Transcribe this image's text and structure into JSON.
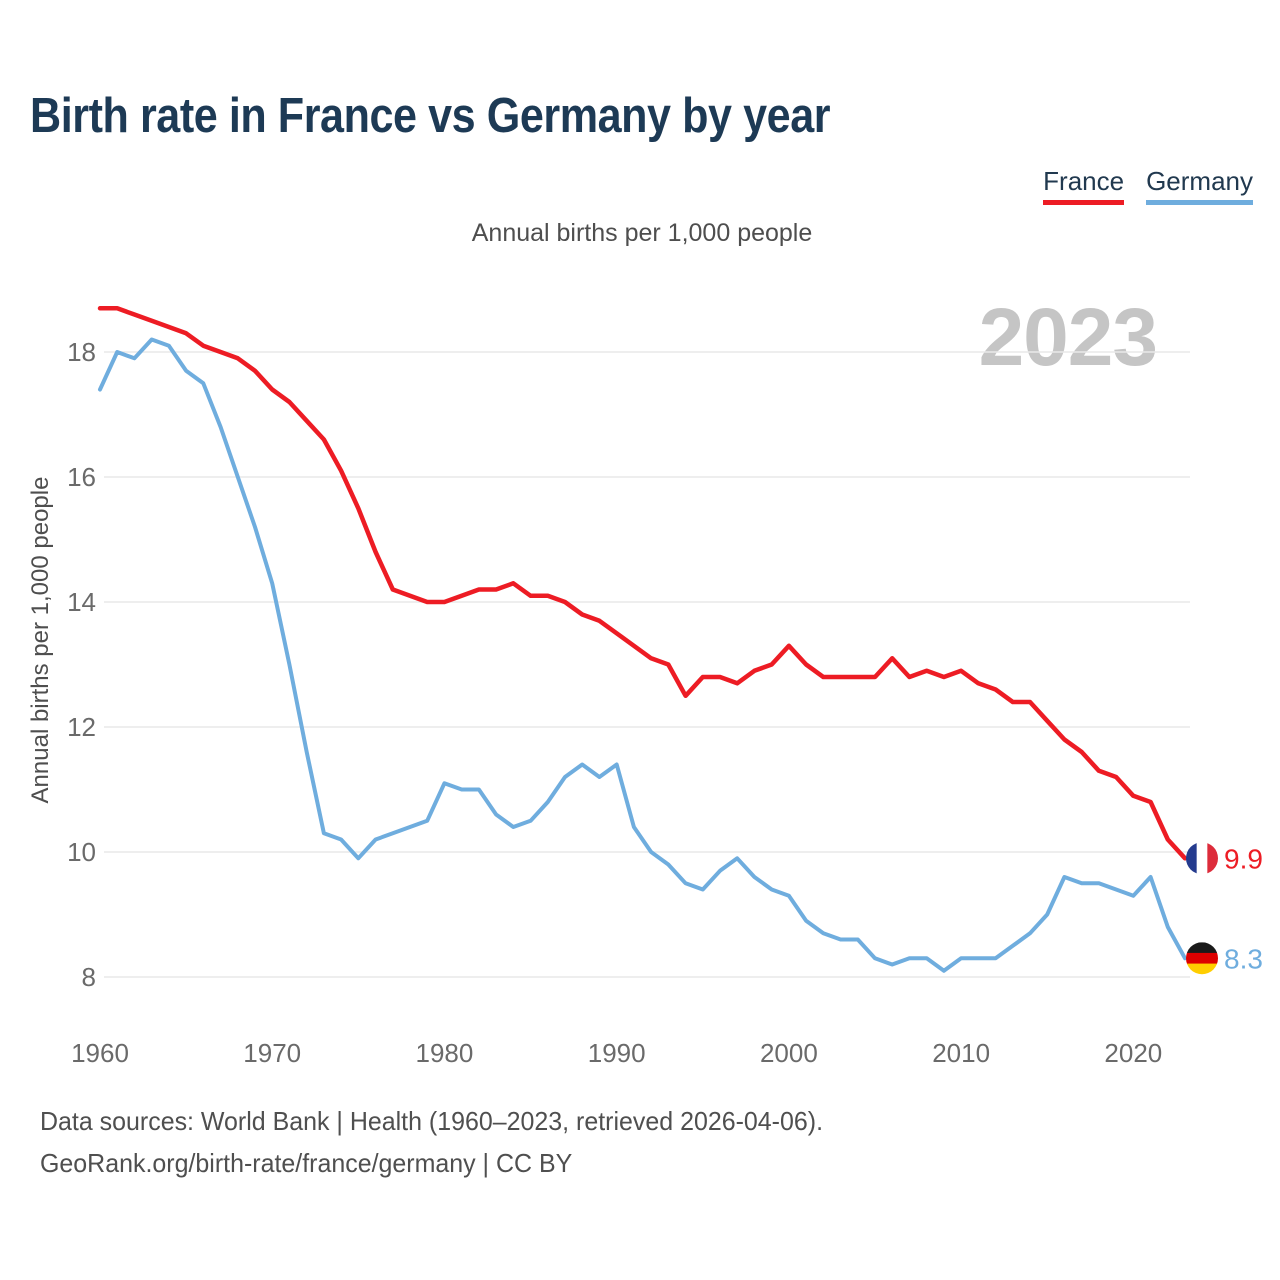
{
  "title": "Birth rate in France vs Germany by year",
  "subtitle": "Annual births per 1,000 people",
  "y_axis_label": "Annual births per 1,000 people",
  "watermark": "2023",
  "legend": {
    "france": {
      "label": "France",
      "color": "#ed1c24"
    },
    "germany": {
      "label": "Germany",
      "color": "#6fadde"
    }
  },
  "footer": {
    "line1": "Data sources: World Bank | Health (1960–2023, retrieved 2026-04-06).",
    "line2": "GeoRank.org/birth-rate/france/germany | CC BY"
  },
  "colors": {
    "france_red": "#ed1c24",
    "germany_blue": "#6fadde",
    "title_navy": "#1d3a55",
    "watermark_gray": "#c5c5c5",
    "axis_gray": "#6a6a6a",
    "subtitle_gray": "#4e4e4e",
    "gridline_gray": "#e9e9e9"
  },
  "flags": {
    "france": [
      "#243b8e",
      "#ffffff",
      "#dd2c3b"
    ],
    "germany": [
      "#1a1a1a",
      "#dd0000",
      "#ffce00"
    ]
  },
  "chart_data": {
    "type": "line",
    "title": "Birth rate in France vs Germany by year",
    "subtitle": "Annual births per 1,000 people",
    "xlabel": "",
    "ylabel": "Annual births per 1,000 people",
    "ylim": [
      8,
      18
    ],
    "yticks": [
      8,
      10,
      12,
      14,
      16,
      18
    ],
    "xticks": [
      1960,
      1970,
      1980,
      1990,
      2000,
      2010,
      2020
    ],
    "grid": true,
    "legend_position": "top-right",
    "x": [
      1960,
      1961,
      1962,
      1963,
      1964,
      1965,
      1966,
      1967,
      1968,
      1969,
      1970,
      1971,
      1972,
      1973,
      1974,
      1975,
      1976,
      1977,
      1978,
      1979,
      1980,
      1981,
      1982,
      1983,
      1984,
      1985,
      1986,
      1987,
      1988,
      1989,
      1990,
      1991,
      1992,
      1993,
      1994,
      1995,
      1996,
      1997,
      1998,
      1999,
      2000,
      2001,
      2002,
      2003,
      2004,
      2005,
      2006,
      2007,
      2008,
      2009,
      2010,
      2011,
      2012,
      2013,
      2014,
      2015,
      2016,
      2017,
      2018,
      2019,
      2020,
      2021,
      2022,
      2023
    ],
    "series": [
      {
        "name": "Germany",
        "color": "#6fadde",
        "stroke_width": 4,
        "end_label": "8.3",
        "flag": "germany",
        "values": [
          17.4,
          18.0,
          17.9,
          18.2,
          18.1,
          17.7,
          17.5,
          16.8,
          16.0,
          15.2,
          14.3,
          13.0,
          11.6,
          10.3,
          10.2,
          9.9,
          10.2,
          10.3,
          10.4,
          10.5,
          11.1,
          11.0,
          11.0,
          10.6,
          10.4,
          10.5,
          10.8,
          11.2,
          11.4,
          11.2,
          11.4,
          10.4,
          10.0,
          9.8,
          9.5,
          9.4,
          9.7,
          9.9,
          9.6,
          9.4,
          9.3,
          8.9,
          8.7,
          8.6,
          8.6,
          8.3,
          8.2,
          8.3,
          8.3,
          8.1,
          8.3,
          8.3,
          8.3,
          8.5,
          8.7,
          9.0,
          9.6,
          9.5,
          9.5,
          9.4,
          9.3,
          9.6,
          8.8,
          8.3
        ]
      },
      {
        "name": "France",
        "color": "#ed1c24",
        "stroke_width": 4.5,
        "end_label": "9.9",
        "flag": "france",
        "values": [
          18.7,
          18.7,
          18.6,
          18.5,
          18.4,
          18.3,
          18.1,
          18.0,
          17.9,
          17.7,
          17.4,
          17.2,
          16.9,
          16.6,
          16.1,
          15.5,
          14.8,
          14.2,
          14.1,
          14.0,
          14.0,
          14.1,
          14.2,
          14.2,
          14.3,
          14.1,
          14.1,
          14.0,
          13.8,
          13.7,
          13.5,
          13.3,
          13.1,
          13.0,
          12.5,
          12.8,
          12.8,
          12.7,
          12.9,
          13.0,
          13.3,
          13.0,
          12.8,
          12.8,
          12.8,
          12.8,
          13.1,
          12.8,
          12.9,
          12.8,
          12.9,
          12.7,
          12.6,
          12.4,
          12.4,
          12.1,
          11.8,
          11.6,
          11.3,
          11.2,
          10.9,
          10.8,
          10.2,
          9.9
        ]
      }
    ]
  }
}
